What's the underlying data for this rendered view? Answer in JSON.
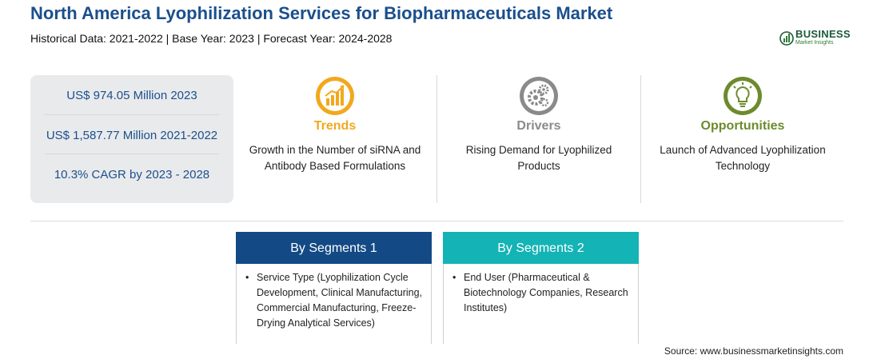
{
  "header": {
    "title": "North America Lyophilization Services for Biopharmaceuticals Market",
    "subtitle": "Historical Data: 2021-2022 | Base Year: 2023 | Forecast Year: 2024-2028"
  },
  "logo": {
    "word": "BUSINESS",
    "sub": "Market Insights",
    "color": "#1b5a3a",
    "icon": "globe-chart-logo"
  },
  "stats": [
    "US$ 974.05 Million 2023",
    "US$ 1,587.77 Million 2021-2022",
    "10.3% CAGR by 2023 - 2028"
  ],
  "columns": [
    {
      "heading": "Trends",
      "text": "Growth in the Number of siRNA and Antibody Based Formulations",
      "icon": "trend-chart-icon",
      "color": "#f2a81d"
    },
    {
      "heading": "Drivers",
      "text": "Rising Demand for Lyophilized Products",
      "icon": "gears-icon",
      "color": "#8a8a8a"
    },
    {
      "heading": "Opportunities",
      "text": "Launch of Advanced Lyophilization Technology",
      "icon": "lightbulb-icon",
      "color": "#6d8b2c"
    }
  ],
  "segments": [
    {
      "heading": "By Segments 1",
      "items": [
        "Service Type (Lyophilization Cycle Development, Clinical Manufacturing, Commercial Manufacturing, Freeze-Drying Analytical Services)"
      ],
      "color": "#134a85"
    },
    {
      "heading": "By Segments 2",
      "items": [
        "End User (Pharmaceutical & Biotechnology Companies, Research Institutes)"
      ],
      "color": "#14b3b5"
    }
  ],
  "bullet": "•",
  "source": "Source: www.businessmarketinsights.com"
}
